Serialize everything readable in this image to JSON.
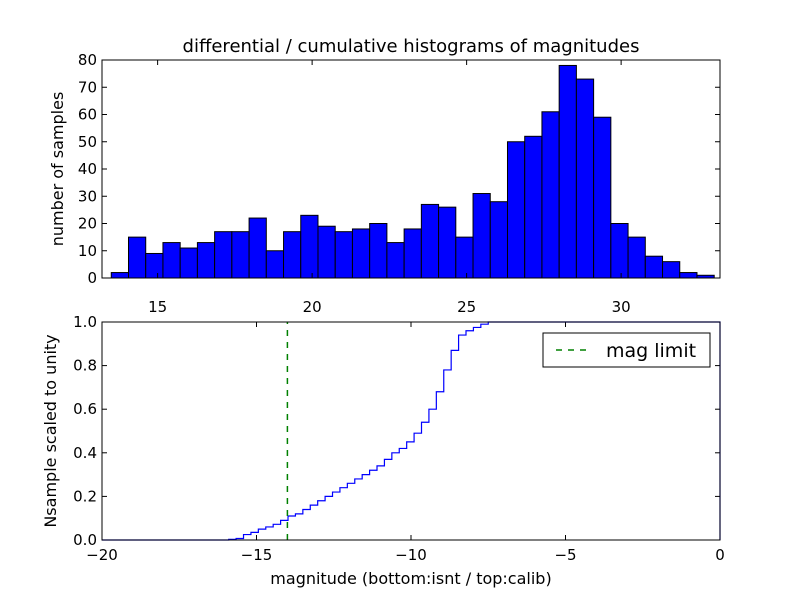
{
  "chart_data": [
    {
      "type": "bar",
      "panel": "top",
      "title": "differential / cumulative histograms of magnitudes",
      "ylabel": "number of samples",
      "xlim": [
        13.2,
        33.2
      ],
      "ylim": [
        0,
        80
      ],
      "bin_width": 0.5575,
      "bins_start": 13.5,
      "bar_color": "#0000ff",
      "xticks": [
        15,
        20,
        25,
        30
      ],
      "xtick_labels": [
        "15",
        "20",
        "25",
        "30"
      ],
      "yticks": [
        0,
        10,
        20,
        30,
        40,
        50,
        60,
        70,
        80
      ],
      "ytick_labels": [
        "0",
        "10",
        "20",
        "30",
        "40",
        "50",
        "60",
        "70",
        "80"
      ],
      "xtick_position": "bottom",
      "values": [
        2,
        15,
        9,
        13,
        11,
        13,
        17,
        17,
        22,
        10,
        17,
        23,
        19,
        17,
        18,
        20,
        13,
        18,
        27,
        26,
        15,
        31,
        28,
        50,
        52,
        61,
        78,
        73,
        59,
        20,
        15,
        8,
        6,
        2,
        1
      ]
    },
    {
      "type": "line",
      "panel": "bottom",
      "style": "step",
      "xlabel": "magnitude (bottom:isnt / top:calib)",
      "ylabel": "Nsample scaled to unity",
      "xlim": [
        -20,
        0
      ],
      "ylim": [
        0,
        1.0
      ],
      "xticks": [
        -20,
        -15,
        -10,
        -5,
        0
      ],
      "xtick_labels": [
        "−20",
        "−15",
        "−10",
        "−5",
        "0"
      ],
      "yticks": [
        0,
        0.2,
        0.4,
        0.6,
        0.8,
        1.0
      ],
      "ytick_labels": [
        "0.0",
        "0.2",
        "0.4",
        "0.6",
        "0.8",
        "1.0"
      ],
      "line_color": "#0000ff",
      "cdf_start": -15.9,
      "cdf_step": 0.24,
      "cdf_values": [
        0.003,
        0.007,
        0.025,
        0.035,
        0.05,
        0.06,
        0.072,
        0.09,
        0.11,
        0.12,
        0.14,
        0.16,
        0.18,
        0.2,
        0.22,
        0.24,
        0.26,
        0.28,
        0.3,
        0.32,
        0.34,
        0.37,
        0.4,
        0.42,
        0.45,
        0.49,
        0.54,
        0.6,
        0.68,
        0.78,
        0.87,
        0.94,
        0.96,
        0.975,
        0.99,
        1.0
      ],
      "mag_limit": -14.0,
      "mag_limit_color": "#008000",
      "legend": {
        "label": "mag limit",
        "position": "upper right"
      }
    }
  ]
}
